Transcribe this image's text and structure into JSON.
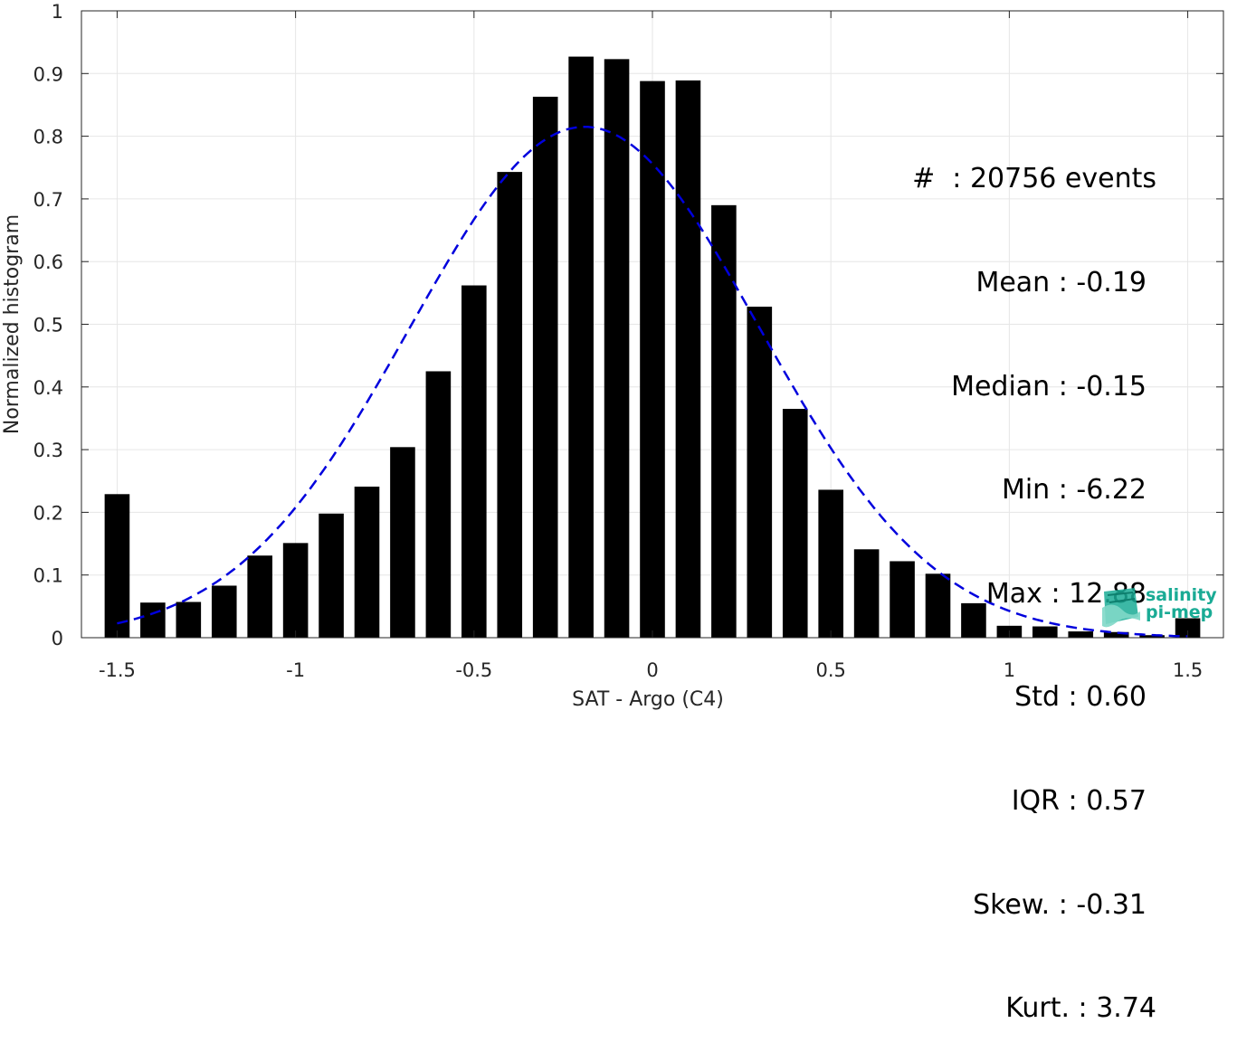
{
  "chart_data": {
    "type": "bar",
    "xlabel": "SAT - Argo (C4)",
    "ylabel": "Normalized histogram",
    "xlim": [
      -1.6,
      1.6
    ],
    "ylim": [
      0,
      1
    ],
    "xticks": [
      -1.5,
      -1,
      -0.5,
      0,
      0.5,
      1,
      1.5
    ],
    "xtick_labels": [
      "-1.5",
      "-1",
      "-0.5",
      "0",
      "0.5",
      "1",
      "1.5"
    ],
    "yticks": [
      0,
      0.1,
      0.2,
      0.3,
      0.4,
      0.5,
      0.6,
      0.7,
      0.8,
      0.9,
      1
    ],
    "ytick_labels": [
      "0",
      "0.1",
      "0.2",
      "0.3",
      "0.4",
      "0.5",
      "0.6",
      "0.7",
      "0.8",
      "0.9",
      "1"
    ],
    "grid": true,
    "bar_color": "#000000",
    "bins": [
      -1.5,
      -1.4,
      -1.3,
      -1.2,
      -1.1,
      -1.0,
      -0.9,
      -0.8,
      -0.7,
      -0.6,
      -0.5,
      -0.4,
      -0.3,
      -0.2,
      -0.1,
      0.0,
      0.1,
      0.2,
      0.3,
      0.4,
      0.5,
      0.6,
      0.7,
      0.8,
      0.9,
      1.0,
      1.1,
      1.2,
      1.3,
      1.4,
      1.5
    ],
    "values": [
      0.229,
      0.056,
      0.057,
      0.083,
      0.131,
      0.151,
      0.198,
      0.241,
      0.304,
      0.425,
      0.562,
      0.743,
      0.863,
      0.927,
      0.923,
      0.888,
      0.889,
      0.69,
      0.528,
      0.365,
      0.236,
      0.141,
      0.122,
      0.102,
      0.055,
      0.019,
      0.018,
      0.01,
      0.009,
      0.004,
      0.031
    ],
    "fit_curve": {
      "style": "dashed",
      "color": "#0000dd",
      "mean": -0.19,
      "std": 0.49,
      "peak": 0.815,
      "x_range": [
        -1.5,
        1.5
      ]
    },
    "stats": [
      "#  : 20756 events",
      "Mean : -0.19",
      "Median : -0.15",
      "Min : -6.22",
      "Max : 12.88",
      "Std : 0.60",
      "IQR : 0.57",
      "Skew. : -0.31",
      "Kurt. : 3.74"
    ]
  },
  "logo": {
    "line1": "salinity",
    "line2": "pi-mep",
    "color": "#1aab95"
  }
}
